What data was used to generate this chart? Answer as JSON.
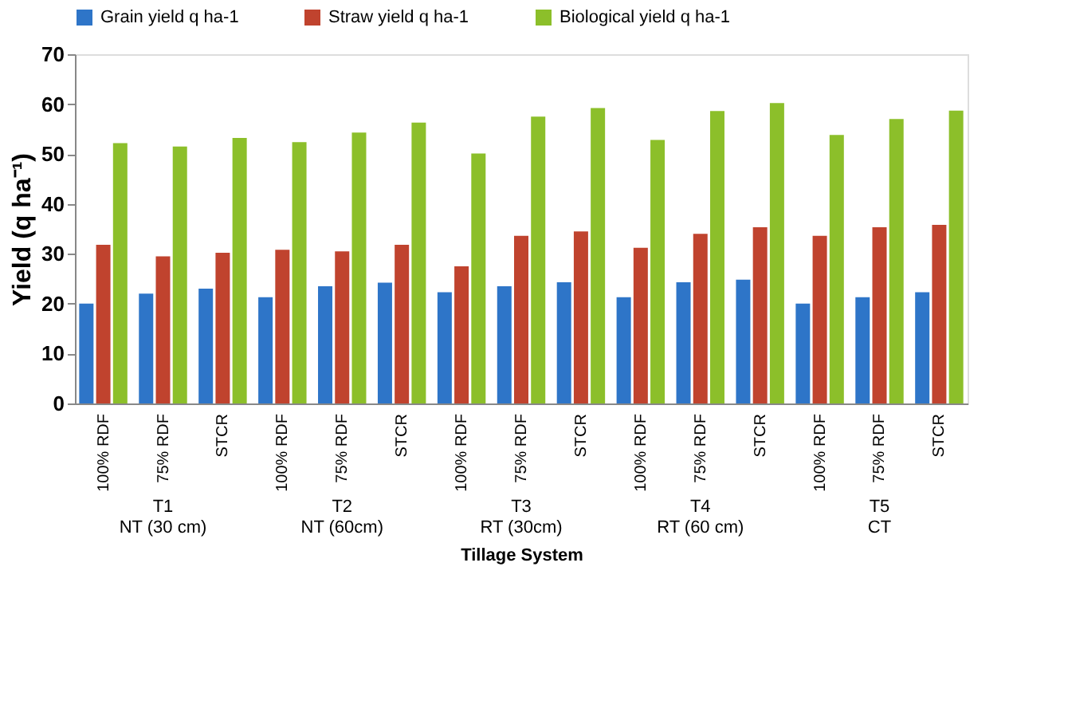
{
  "chart_data": {
    "type": "bar",
    "xlabel": "Tillage System",
    "ylabel": "Yield (q ha⁻¹)",
    "categories": [
      "100% RDF",
      "75% RDF",
      "STCR",
      "100% RDF",
      "75% RDF",
      "STCR",
      "100% RDF",
      "75% RDF",
      "STCR",
      "100% RDF",
      "75% RDF",
      "STCR",
      "100% RDF",
      "75% RDF",
      "STCR"
    ],
    "series": [
      {
        "name": "Grain yield q ha-1",
        "color": "#2e75c8",
        "values": [
          20,
          22,
          23,
          21.3,
          23.5,
          24.2,
          22.3,
          23.5,
          24.3,
          21.3,
          24.3,
          24.8,
          20,
          21.3,
          22.3
        ]
      },
      {
        "name": "Straw yield q ha-1",
        "color": "#c0432e",
        "values": [
          31.8,
          29.5,
          30.2,
          30.8,
          30.5,
          31.8,
          27.5,
          33.6,
          34.5,
          31.2,
          34,
          35.3,
          33.6,
          35.3,
          35.8
        ]
      },
      {
        "name": "Biological yield q ha-1",
        "color": "#8cbf2a",
        "values": [
          52.2,
          51.5,
          53.2,
          52.4,
          54.3,
          56.3,
          50.1,
          57.5,
          59.2,
          52.8,
          58.6,
          60.2,
          53.8,
          57,
          58.7
        ]
      }
    ],
    "annotations": [
      "T1\nNT (30 cm)",
      "T2\nNT (60cm)",
      "T3\nRT (30cm)",
      "T4\nRT (60 cm)",
      "T5\nCT"
    ],
    "ylim": [
      0,
      70
    ],
    "yticks": [
      0,
      10,
      20,
      30,
      40,
      50,
      60,
      70
    ],
    "grid": false,
    "legend": "top"
  }
}
